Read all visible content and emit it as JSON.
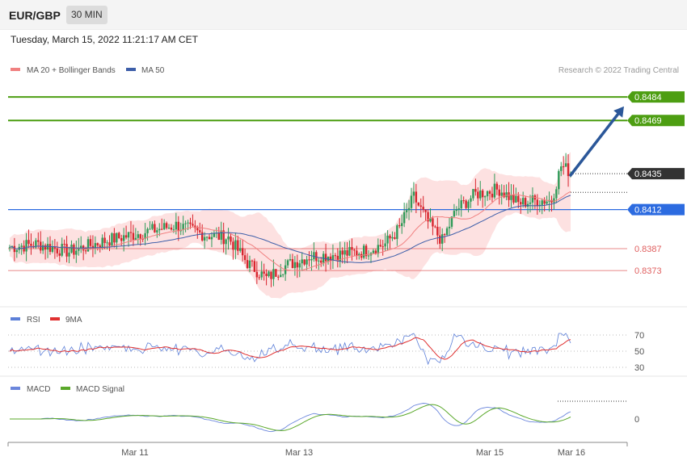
{
  "header": {
    "symbol": "EUR/GBP",
    "timeframe": "30 MIN"
  },
  "timestamp": "Tuesday, March 15, 2022 11:21:17 AM CET",
  "credit": "Research © 2022 Trading Central",
  "colors": {
    "up": "#2f9a58",
    "down": "#d8242d",
    "support": "#e06060",
    "resistance": "#4d9e12",
    "current": "#333333",
    "pivot": "#2c6be0",
    "arrow": "#2b5799",
    "ma20": "#f08080",
    "ma50": "#3d5ea9",
    "rsi": "#5c7fd8",
    "rsi_ma": "#e03030",
    "macd": "#6b86dc",
    "macd_signal": "#5aa82a"
  },
  "chart_data": [
    {
      "type": "candlestick",
      "legend": [
        {
          "name": "MA 20 + Bollinger Bands",
          "color": "#f08080"
        },
        {
          "name": "MA 50",
          "color": "#3d5ea9"
        }
      ],
      "ylim": [
        0.8355,
        0.8497
      ],
      "grid": false,
      "x_ticks": [
        "Mar 11",
        "Mar 13",
        "Mar 15",
        "Mar 16"
      ],
      "price_levels": [
        {
          "value": "0.8484",
          "role": "resistance"
        },
        {
          "value": "0.8469",
          "role": "resistance"
        },
        {
          "value": "0.8435",
          "role": "current"
        },
        {
          "value": "0.8412",
          "role": "pivot"
        },
        {
          "value": "0.8387",
          "role": "support"
        },
        {
          "value": "0.8373",
          "role": "support"
        }
      ],
      "forecast_arrow": {
        "from": 0.8434,
        "to": 0.8478
      }
    },
    {
      "type": "line",
      "legend": [
        {
          "name": "RSI",
          "color": "#5c7fd8"
        },
        {
          "name": "9MA",
          "color": "#e03030"
        }
      ],
      "ylim": [
        20,
        80
      ],
      "levels": [
        "70",
        "50",
        "30"
      ]
    },
    {
      "type": "line",
      "legend": [
        {
          "name": "MACD",
          "color": "#6b86dc"
        },
        {
          "name": "MACD Signal",
          "color": "#5aa82a"
        }
      ],
      "levels": [
        "0"
      ]
    }
  ]
}
